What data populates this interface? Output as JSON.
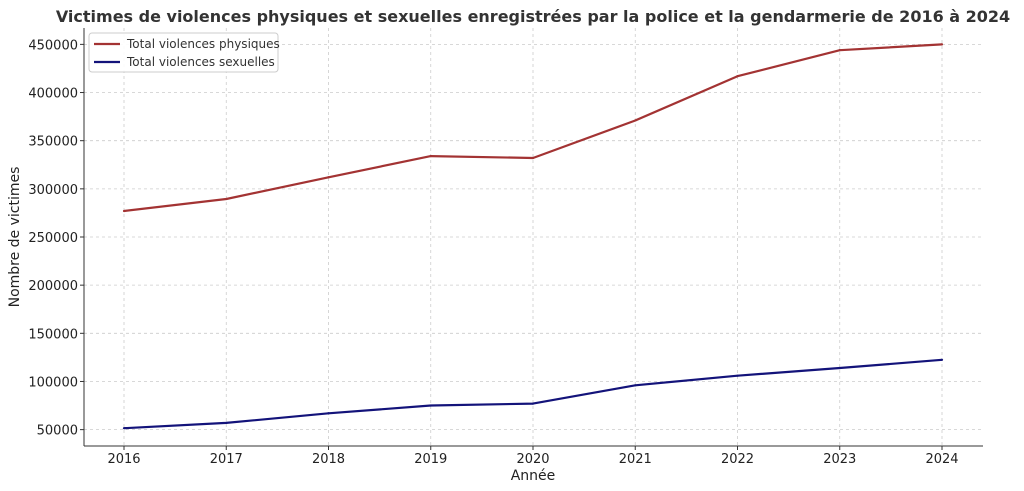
{
  "chart_data": {
    "type": "line",
    "title": "Victimes de violences physiques et sexuelles enregistrées par la police et la gendarmerie de 2016 à 2024",
    "xlabel": "Année",
    "ylabel": "Nombre de victimes",
    "x": [
      "2016",
      "2017",
      "2018",
      "2019",
      "2020",
      "2021",
      "2022",
      "2023",
      "2024"
    ],
    "yticks": [
      "50000",
      "100000",
      "150000",
      "200000",
      "250000",
      "300000",
      "350000",
      "400000",
      "450000"
    ],
    "ylim": [
      33000,
      467000
    ],
    "grid": true,
    "legend_position": "top-left",
    "series": [
      {
        "name": "Total violences physiques",
        "color": "#a33333",
        "values": [
          277000,
          289500,
          312000,
          334000,
          332000,
          371000,
          417000,
          444000,
          450000
        ]
      },
      {
        "name": "Total violences sexuelles",
        "color": "#13137a",
        "values": [
          51500,
          57000,
          67000,
          75000,
          77000,
          96000,
          106000,
          114000,
          122500
        ]
      }
    ]
  }
}
